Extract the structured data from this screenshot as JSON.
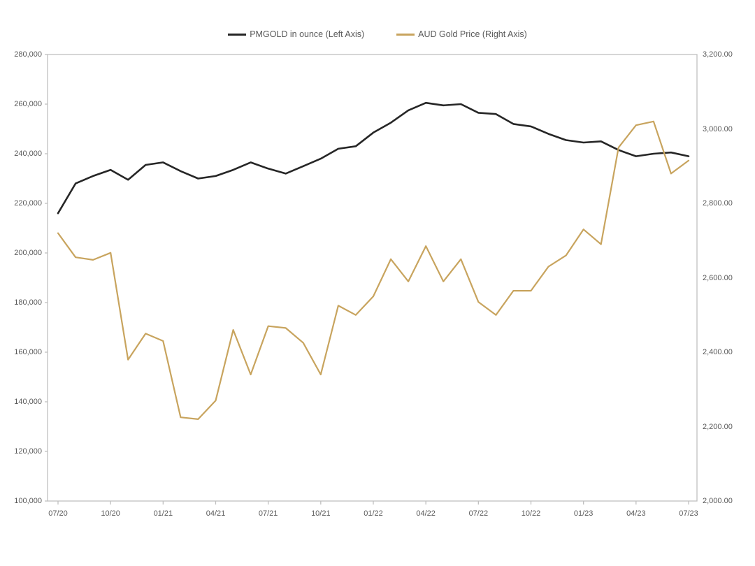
{
  "legend": {
    "items": [
      {
        "label": "PMGOLD in ounce (Left Axis)",
        "color": "#262626"
      },
      {
        "label": "AUD Gold Price (Right Axis)",
        "color": "#C8A45E"
      }
    ]
  },
  "chart_data": {
    "type": "line",
    "title": "",
    "grid": false,
    "legend_position": "top",
    "x": [
      "07/20",
      "08/20",
      "09/20",
      "10/20",
      "11/20",
      "12/20",
      "01/21",
      "02/21",
      "03/21",
      "04/21",
      "05/21",
      "06/21",
      "07/21",
      "08/21",
      "09/21",
      "10/21",
      "11/21",
      "12/21",
      "01/22",
      "02/22",
      "03/22",
      "04/22",
      "05/22",
      "06/22",
      "07/22",
      "08/22",
      "09/22",
      "10/22",
      "11/22",
      "12/22",
      "01/23",
      "02/23",
      "03/23",
      "04/23",
      "05/23",
      "06/23",
      "07/23"
    ],
    "x_tick_labels": [
      "07/20",
      "10/20",
      "01/21",
      "04/21",
      "07/21",
      "10/21",
      "01/22",
      "04/22",
      "07/22",
      "10/22",
      "01/23",
      "04/23",
      "07/23"
    ],
    "x_tick_every": 3,
    "series": [
      {
        "name": "PMGOLD in ounce (Left Axis)",
        "axis": "left",
        "color": "#262626",
        "width": 2.6,
        "values": [
          216000,
          228000,
          231000,
          233500,
          229500,
          235500,
          236500,
          233000,
          230000,
          231000,
          233500,
          236500,
          234000,
          232000,
          235000,
          238000,
          242000,
          243000,
          248500,
          252500,
          257500,
          260500,
          259500,
          260000,
          256500,
          256000,
          252000,
          251000,
          248000,
          245500,
          244500,
          245000,
          241500,
          239000,
          240000,
          240500,
          239000
        ]
      },
      {
        "name": "AUD Gold Price (Right Axis)",
        "axis": "right",
        "color": "#C8A45E",
        "width": 2.2,
        "values": [
          2720,
          2655,
          2648,
          2667,
          2380,
          2450,
          2430,
          2225,
          2220,
          2270,
          2460,
          2340,
          2470,
          2465,
          2425,
          2340,
          2525,
          2500,
          2550,
          2650,
          2590,
          2685,
          2590,
          2650,
          2535,
          2500,
          2565,
          2565,
          2630,
          2660,
          2730,
          2690,
          2950,
          3010,
          3020,
          2880,
          2915
        ]
      }
    ],
    "left_axis": {
      "min": 100000,
      "max": 280000,
      "tick_step": 20000,
      "tick_labels": [
        "280,000",
        "260,000",
        "240,000",
        "220,000",
        "200,000",
        "180,000",
        "160,000",
        "140,000",
        "120,000",
        "100,000"
      ]
    },
    "right_axis": {
      "min": 2000,
      "max": 3200,
      "tick_step": 200,
      "tick_labels": [
        "3,200.00",
        "3,000.00",
        "2,800.00",
        "2,600.00",
        "2,400.00",
        "2,200.00",
        "2,000.00"
      ]
    }
  },
  "colors": {
    "axis_text": "#595959",
    "plot_border": "#BFBFBF",
    "background": "#FFFFFF"
  }
}
